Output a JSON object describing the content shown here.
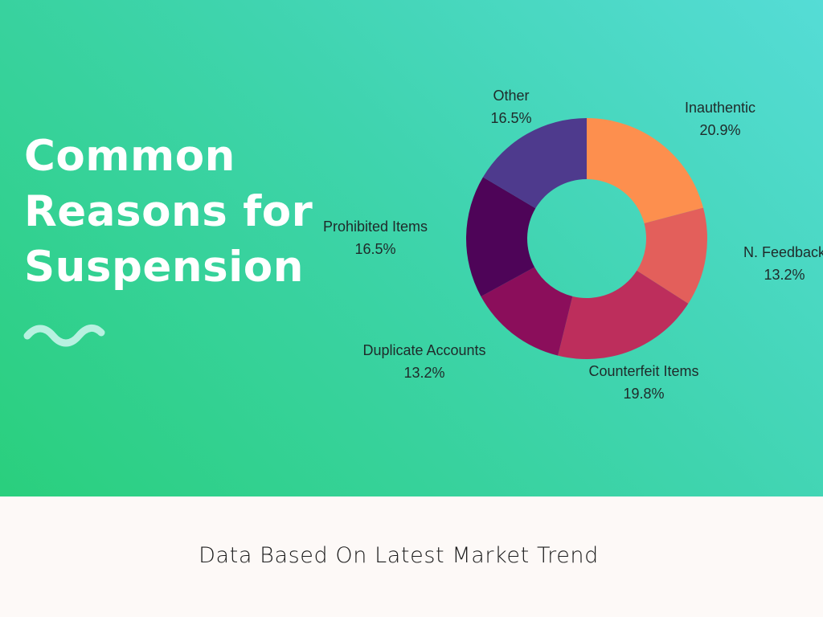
{
  "hero": {
    "title_lines": [
      "Common",
      "Reasons for",
      "Suspension"
    ],
    "squiggle_color": "#b7f1e0"
  },
  "chart_data": {
    "type": "pie",
    "donut": true,
    "title": "",
    "slices": [
      {
        "label": "Inauthentic",
        "value": 20.9,
        "display": "20.9%",
        "color": "#fd8f4e"
      },
      {
        "label": "N. Feedback",
        "value": 13.2,
        "display": "13.2%",
        "color": "#e35f5b"
      },
      {
        "label": "Counterfeit Items",
        "value": 19.8,
        "display": "19.8%",
        "color": "#bd2e5c"
      },
      {
        "label": "Duplicate Accounts",
        "value": 13.2,
        "display": "13.2%",
        "color": "#8b0e5b"
      },
      {
        "label": "Prohibited Items",
        "value": 16.5,
        "display": "16.5%",
        "color": "#4e0458"
      },
      {
        "label": "Other",
        "value": 16.5,
        "display": "16.5%",
        "color": "#4e3a8d"
      }
    ]
  },
  "footer": {
    "text": "Data Based On Latest Market Trend"
  }
}
